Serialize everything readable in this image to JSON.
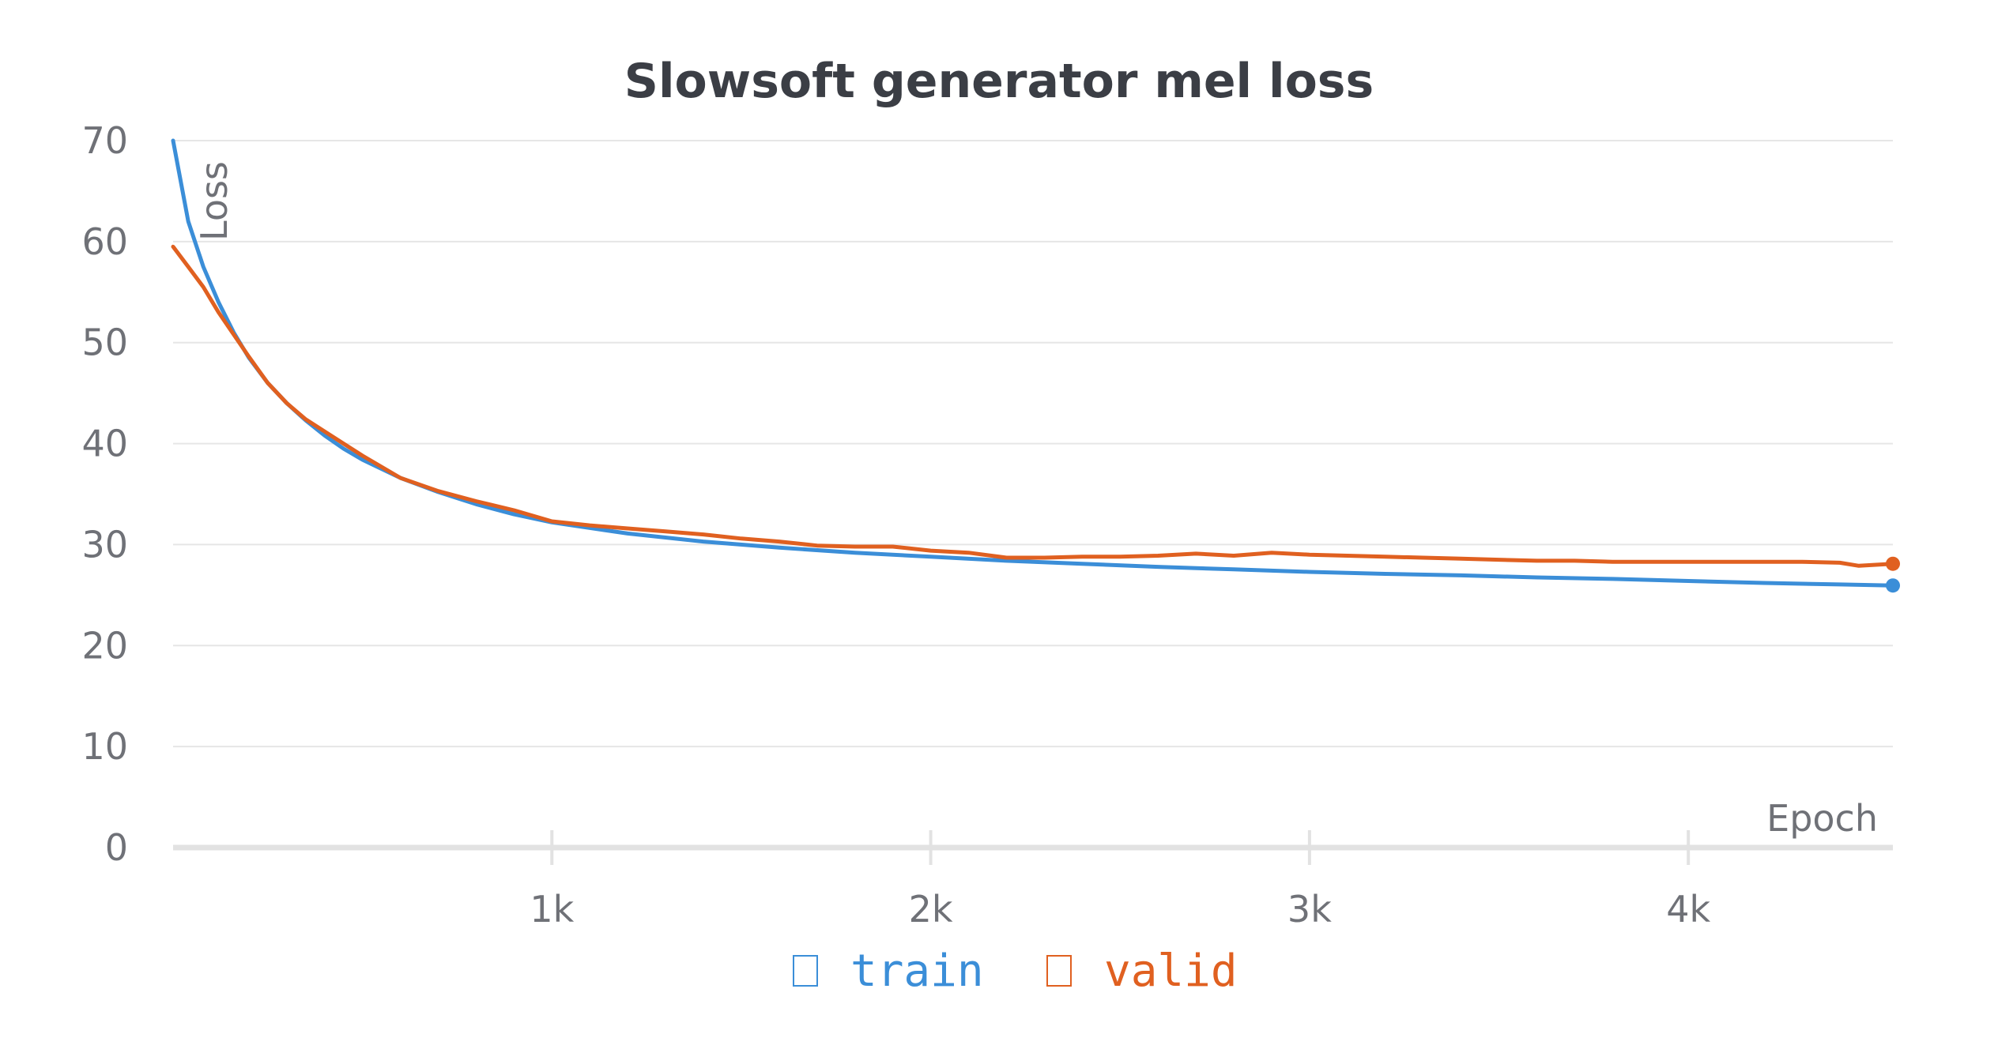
{
  "chart_data": {
    "type": "line",
    "title": "Slowsoft generator mel loss",
    "xlabel": "Epoch",
    "ylabel": "Loss",
    "xlim": [
      0,
      4540
    ],
    "ylim": [
      0,
      70
    ],
    "y_ticks": [
      0,
      10,
      20,
      30,
      40,
      50,
      60,
      70
    ],
    "x_ticks": [
      {
        "value": 1000,
        "label": "1k"
      },
      {
        "value": 2000,
        "label": "2k"
      },
      {
        "value": 3000,
        "label": "3k"
      },
      {
        "value": 4000,
        "label": "4k"
      }
    ],
    "grid": true,
    "legend_position": "bottom",
    "series": [
      {
        "name": "train",
        "color": "#3b8ed8",
        "x": [
          0,
          40,
          80,
          120,
          160,
          200,
          250,
          300,
          350,
          400,
          450,
          500,
          600,
          700,
          800,
          900,
          1000,
          1200,
          1400,
          1600,
          1800,
          2000,
          2200,
          2400,
          2600,
          2800,
          3000,
          3200,
          3400,
          3600,
          3800,
          4000,
          4200,
          4400,
          4540
        ],
        "y": [
          70,
          62,
          57.5,
          54,
          51,
          48.5,
          46,
          44,
          42.3,
          40.8,
          39.5,
          38.4,
          36.6,
          35.2,
          34,
          33,
          32.2,
          31.1,
          30.3,
          29.7,
          29.2,
          28.8,
          28.4,
          28.1,
          27.8,
          27.55,
          27.3,
          27.1,
          26.95,
          26.75,
          26.6,
          26.4,
          26.2,
          26.05,
          25.95
        ]
      },
      {
        "name": "valid",
        "color": "#e06020",
        "x": [
          0,
          40,
          80,
          120,
          160,
          200,
          250,
          300,
          350,
          400,
          450,
          500,
          600,
          700,
          800,
          900,
          1000,
          1100,
          1200,
          1300,
          1400,
          1500,
          1600,
          1700,
          1800,
          1900,
          2000,
          2100,
          2200,
          2300,
          2400,
          2500,
          2600,
          2700,
          2800,
          2900,
          3000,
          3100,
          3200,
          3300,
          3400,
          3500,
          3600,
          3700,
          3800,
          3900,
          4000,
          4100,
          4200,
          4300,
          4400,
          4450,
          4540
        ],
        "y": [
          59.5,
          57.5,
          55.5,
          53,
          50.8,
          48.6,
          46,
          44,
          42.4,
          41.2,
          40,
          38.8,
          36.6,
          35.3,
          34.3,
          33.4,
          32.3,
          31.9,
          31.6,
          31.3,
          31,
          30.6,
          30.3,
          29.9,
          29.8,
          29.8,
          29.4,
          29.2,
          28.7,
          28.7,
          28.8,
          28.8,
          28.9,
          29.1,
          28.9,
          29.2,
          29.0,
          28.9,
          28.8,
          28.7,
          28.6,
          28.5,
          28.4,
          28.4,
          28.3,
          28.3,
          28.3,
          28.3,
          28.3,
          28.3,
          28.2,
          27.9,
          28.1
        ]
      }
    ]
  }
}
